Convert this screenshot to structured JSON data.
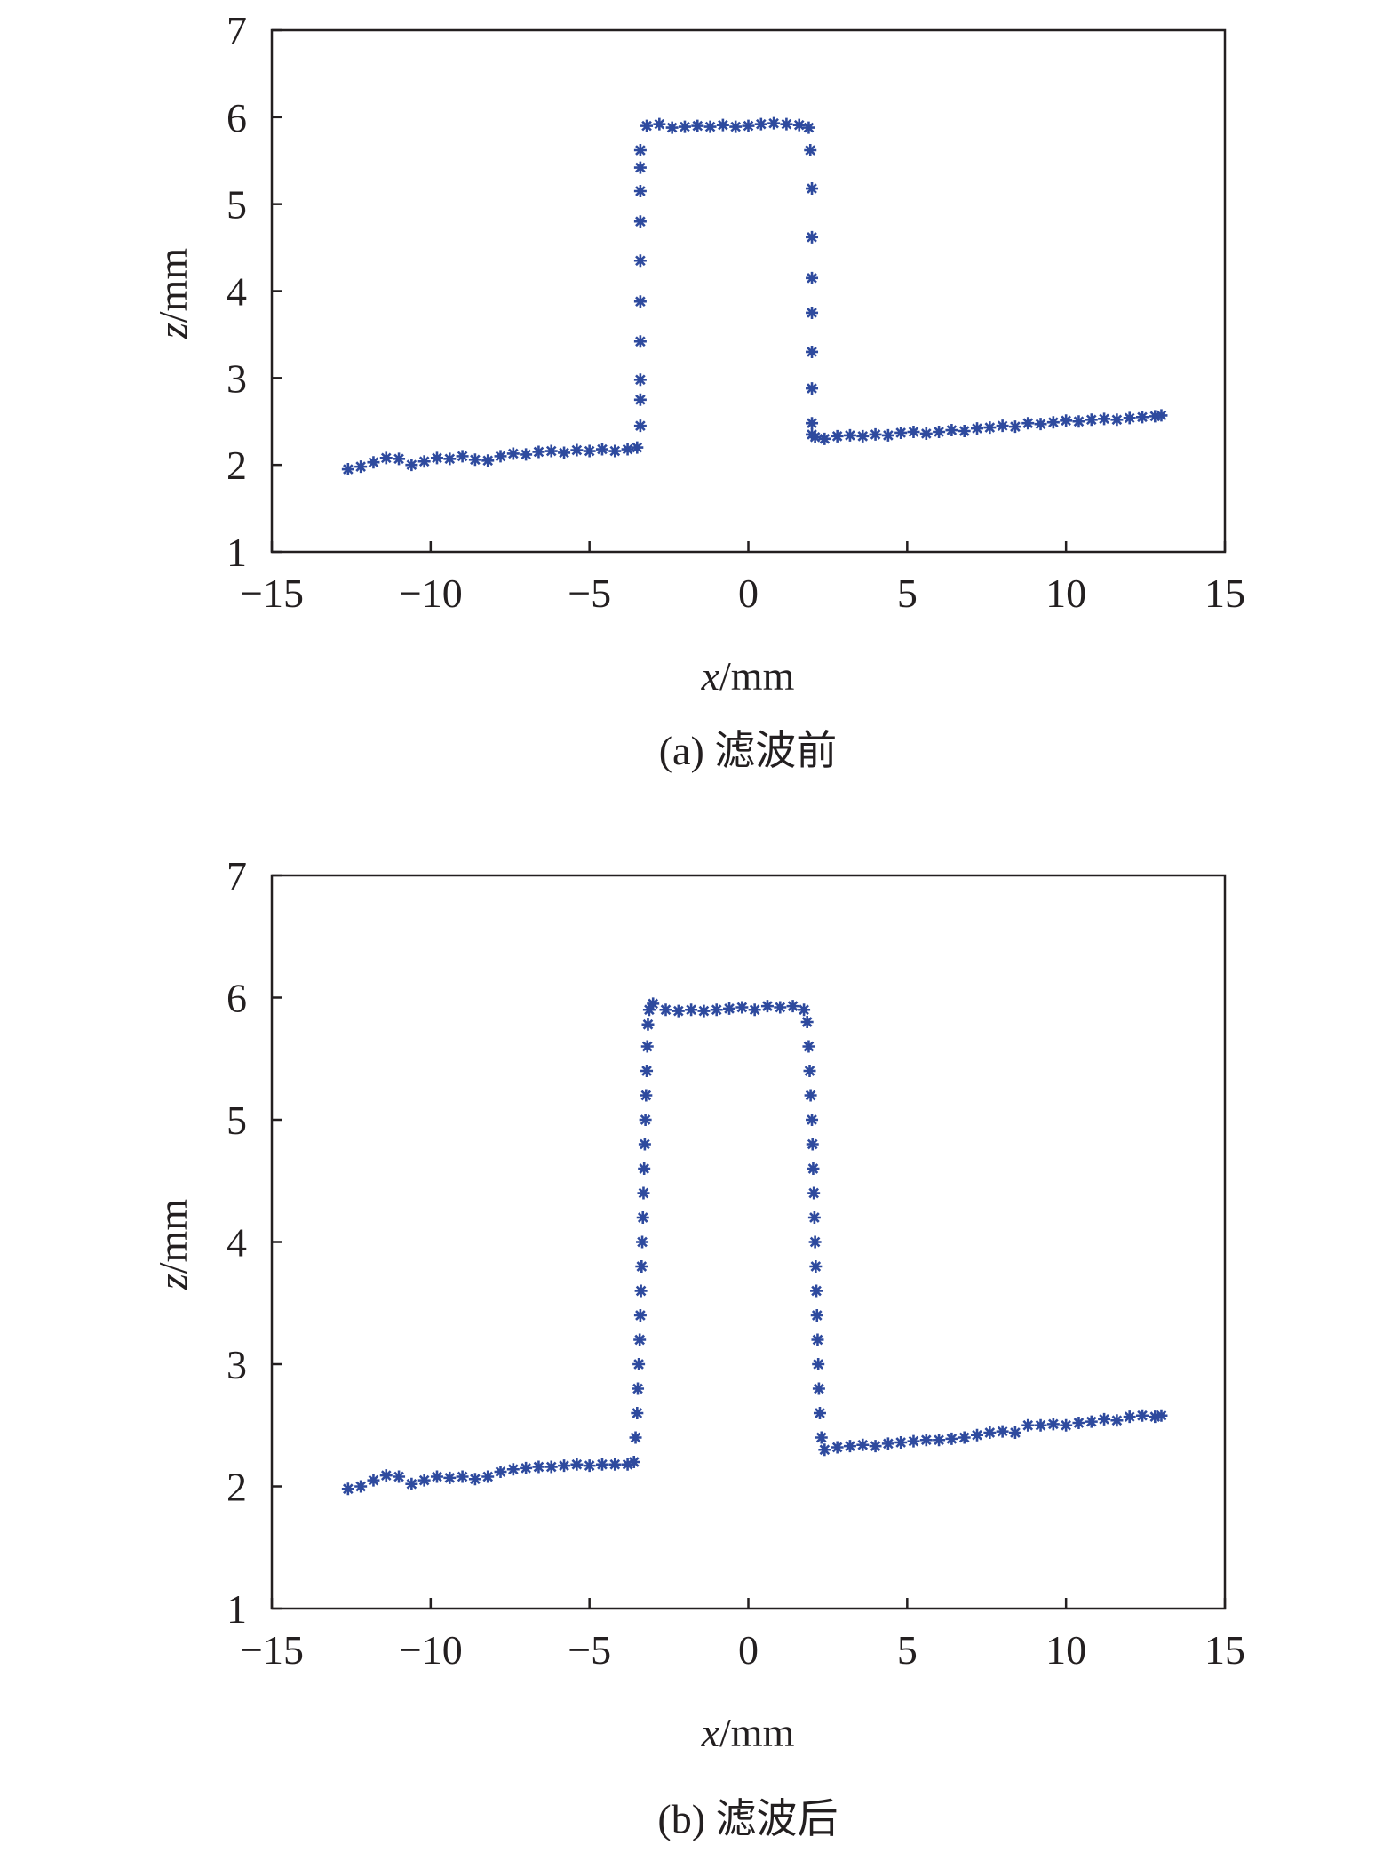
{
  "chart_data": [
    {
      "type": "scatter",
      "caption": "(a) 滤波前",
      "xlabel": {
        "var": "x",
        "unit": "/mm"
      },
      "ylabel": {
        "var": "z",
        "unit": "/mm"
      },
      "xlim": [
        -15,
        15
      ],
      "ylim": [
        1,
        7
      ],
      "xticks": [
        -15,
        -10,
        -5,
        0,
        5,
        10,
        15
      ],
      "yticks": [
        1,
        2,
        3,
        4,
        5,
        6,
        7
      ],
      "xtick_labels": [
        "−15",
        "−10",
        "−5",
        "0",
        "5",
        "10",
        "15"
      ],
      "ytick_labels": [
        "1",
        "2",
        "3",
        "4",
        "5",
        "6",
        "7"
      ],
      "marker": "asterisk",
      "color": "#2e4a9e",
      "grid": false,
      "series": [
        {
          "x": [
            -12.6,
            -12.2,
            -11.8,
            -11.4,
            -11.0,
            -10.6,
            -10.2,
            -9.8,
            -9.4,
            -9.0,
            -8.6,
            -8.2,
            -7.8,
            -7.4,
            -7.0,
            -6.6,
            -6.2,
            -5.8,
            -5.4,
            -5.0,
            -4.6,
            -4.2,
            -3.8,
            -3.5,
            -3.4,
            -3.4,
            -3.4,
            -3.4,
            -3.4,
            -3.4,
            -3.4,
            -3.4,
            -3.4,
            -3.4,
            -3.2,
            -2.8,
            -2.4,
            -2.0,
            -1.6,
            -1.2,
            -0.8,
            -0.4,
            0.0,
            0.4,
            0.8,
            1.2,
            1.6,
            1.9,
            1.95,
            2.0,
            2.0,
            2.0,
            2.0,
            2.0,
            2.0,
            2.0,
            2.0,
            2.1,
            2.4,
            2.8,
            3.2,
            3.6,
            4.0,
            4.4,
            4.8,
            5.2,
            5.6,
            6.0,
            6.4,
            6.8,
            7.2,
            7.6,
            8.0,
            8.4,
            8.8,
            9.2,
            9.6,
            10.0,
            10.4,
            10.8,
            11.2,
            11.6,
            12.0,
            12.4,
            12.8,
            13.0
          ],
          "y": [
            1.95,
            1.98,
            2.03,
            2.08,
            2.07,
            2.0,
            2.04,
            2.08,
            2.07,
            2.1,
            2.06,
            2.05,
            2.1,
            2.13,
            2.12,
            2.15,
            2.16,
            2.14,
            2.17,
            2.16,
            2.18,
            2.16,
            2.18,
            2.2,
            2.45,
            2.75,
            2.98,
            3.42,
            3.88,
            4.35,
            4.8,
            5.15,
            5.42,
            5.62,
            5.9,
            5.92,
            5.88,
            5.89,
            5.9,
            5.89,
            5.91,
            5.89,
            5.9,
            5.92,
            5.93,
            5.92,
            5.91,
            5.88,
            5.62,
            5.18,
            4.62,
            4.15,
            3.75,
            3.3,
            2.88,
            2.48,
            2.35,
            2.32,
            2.3,
            2.33,
            2.34,
            2.33,
            2.35,
            2.34,
            2.37,
            2.38,
            2.36,
            2.38,
            2.4,
            2.39,
            2.42,
            2.43,
            2.45,
            2.44,
            2.48,
            2.47,
            2.49,
            2.51,
            2.5,
            2.52,
            2.53,
            2.52,
            2.54,
            2.55,
            2.56,
            2.57
          ]
        }
      ]
    },
    {
      "type": "scatter",
      "caption": "(b) 滤波后",
      "xlabel": {
        "var": "x",
        "unit": "/mm"
      },
      "ylabel": {
        "var": "z",
        "unit": "/mm"
      },
      "xlim": [
        -15,
        15
      ],
      "ylim": [
        1,
        7
      ],
      "xticks": [
        -15,
        -10,
        -5,
        0,
        5,
        10,
        15
      ],
      "yticks": [
        1,
        2,
        3,
        4,
        5,
        6,
        7
      ],
      "xtick_labels": [
        "−15",
        "−10",
        "−5",
        "0",
        "5",
        "10",
        "15"
      ],
      "ytick_labels": [
        "1",
        "2",
        "3",
        "4",
        "5",
        "6",
        "7"
      ],
      "marker": "asterisk",
      "color": "#2e4a9e",
      "grid": false,
      "series": [
        {
          "x": [
            -12.6,
            -12.2,
            -11.8,
            -11.4,
            -11.0,
            -10.6,
            -10.2,
            -9.8,
            -9.4,
            -9.0,
            -8.6,
            -8.2,
            -7.8,
            -7.4,
            -7.0,
            -6.6,
            -6.2,
            -5.8,
            -5.4,
            -5.0,
            -4.6,
            -4.2,
            -3.8,
            -3.6,
            -3.55,
            -3.5,
            -3.48,
            -3.45,
            -3.42,
            -3.4,
            -3.38,
            -3.36,
            -3.34,
            -3.32,
            -3.3,
            -3.28,
            -3.26,
            -3.24,
            -3.22,
            -3.2,
            -3.18,
            -3.16,
            -3.12,
            -3.0,
            -2.6,
            -2.2,
            -1.8,
            -1.4,
            -1.0,
            -0.6,
            -0.2,
            0.2,
            0.6,
            1.0,
            1.4,
            1.75,
            1.85,
            1.9,
            1.93,
            1.96,
            2.0,
            2.02,
            2.04,
            2.06,
            2.08,
            2.1,
            2.12,
            2.14,
            2.16,
            2.18,
            2.2,
            2.22,
            2.25,
            2.3,
            2.4,
            2.8,
            3.2,
            3.6,
            4.0,
            4.4,
            4.8,
            5.2,
            5.6,
            6.0,
            6.4,
            6.8,
            7.2,
            7.6,
            8.0,
            8.4,
            8.8,
            9.2,
            9.6,
            10.0,
            10.4,
            10.8,
            11.2,
            11.6,
            12.0,
            12.4,
            12.8,
            13.0
          ],
          "y": [
            1.98,
            2.0,
            2.05,
            2.09,
            2.08,
            2.02,
            2.05,
            2.08,
            2.07,
            2.08,
            2.06,
            2.08,
            2.12,
            2.14,
            2.15,
            2.16,
            2.16,
            2.17,
            2.18,
            2.17,
            2.18,
            2.18,
            2.18,
            2.2,
            2.4,
            2.6,
            2.8,
            3.0,
            3.2,
            3.4,
            3.6,
            3.8,
            4.0,
            4.2,
            4.4,
            4.6,
            4.8,
            5.0,
            5.2,
            5.4,
            5.6,
            5.78,
            5.9,
            5.95,
            5.9,
            5.89,
            5.9,
            5.89,
            5.9,
            5.91,
            5.92,
            5.9,
            5.93,
            5.92,
            5.93,
            5.9,
            5.8,
            5.6,
            5.4,
            5.2,
            5.0,
            4.8,
            4.6,
            4.4,
            4.2,
            4.0,
            3.8,
            3.6,
            3.4,
            3.2,
            3.0,
            2.8,
            2.6,
            2.4,
            2.3,
            2.32,
            2.33,
            2.34,
            2.33,
            2.35,
            2.36,
            2.37,
            2.38,
            2.38,
            2.39,
            2.4,
            2.42,
            2.44,
            2.45,
            2.44,
            2.5,
            2.5,
            2.51,
            2.5,
            2.52,
            2.53,
            2.55,
            2.54,
            2.57,
            2.58,
            2.57,
            2.58
          ]
        }
      ]
    }
  ]
}
